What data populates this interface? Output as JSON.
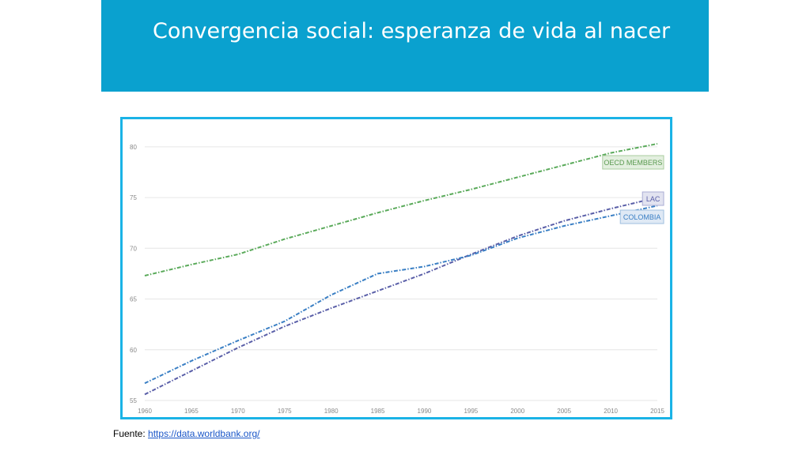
{
  "slide": {
    "title": "Convergencia social: esperanza de vida al nacer",
    "source_label": "Fuente:",
    "source_link": "https://data.worldbank.org/"
  },
  "chart_data": {
    "type": "line",
    "title": "",
    "xlabel": "",
    "ylabel": "",
    "xlim": [
      1960,
      2015
    ],
    "ylim": [
      55,
      81
    ],
    "x_ticks": [
      1960,
      1965,
      1970,
      1975,
      1980,
      1985,
      1990,
      1995,
      2000,
      2005,
      2010,
      2015
    ],
    "y_ticks": [
      55,
      60,
      65,
      70,
      75,
      80
    ],
    "grid": "horizontal",
    "legend": "labels at line ends (right)",
    "x": [
      1960,
      1965,
      1970,
      1975,
      1980,
      1985,
      1990,
      1995,
      2000,
      2005,
      2010,
      2015
    ],
    "series": [
      {
        "name": "OECD MEMBERS",
        "color": "#5aaa5a",
        "values": [
          67.3,
          68.4,
          69.4,
          70.9,
          72.2,
          73.5,
          74.7,
          75.8,
          77.0,
          78.2,
          79.4,
          80.3
        ]
      },
      {
        "name": "LAC",
        "color": "#5a5fa8",
        "values": [
          55.6,
          57.9,
          60.2,
          62.3,
          64.1,
          65.8,
          67.5,
          69.4,
          71.2,
          72.7,
          73.9,
          75.0
        ]
      },
      {
        "name": "COLOMBIA",
        "color": "#3a7fc4",
        "values": [
          56.7,
          58.9,
          60.9,
          62.8,
          65.4,
          67.5,
          68.2,
          69.3,
          71.0,
          72.2,
          73.2,
          74.2
        ]
      }
    ]
  }
}
